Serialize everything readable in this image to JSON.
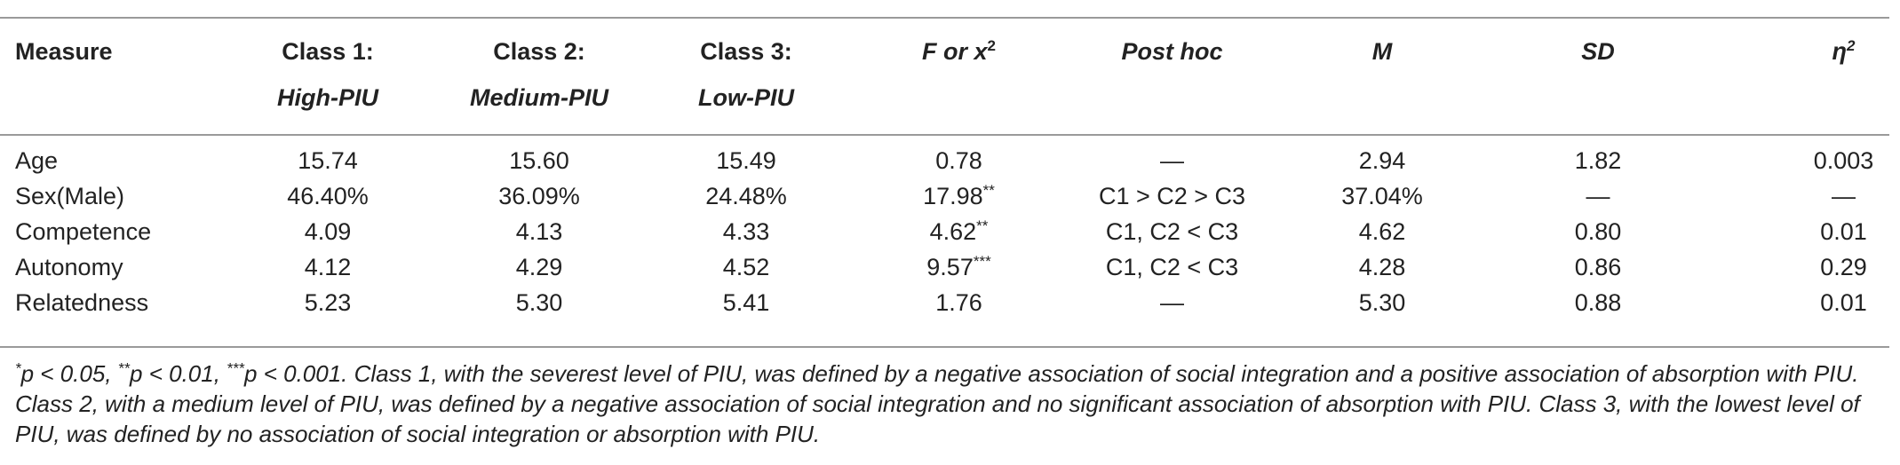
{
  "table": {
    "headers": [
      {
        "line1": "Measure",
        "line2": "",
        "sup": ""
      },
      {
        "line1": "Class 1:",
        "line2": "High-PIU",
        "sup": ""
      },
      {
        "line1": "Class 2:",
        "line2": "Medium-PIU",
        "sup": ""
      },
      {
        "line1": "Class 3:",
        "line2": "Low-PIU",
        "sup": ""
      },
      {
        "line1": "F or x",
        "line2": "",
        "sup": "2"
      },
      {
        "line1": "Post hoc",
        "line2": "",
        "sup": ""
      },
      {
        "line1": "M",
        "line2": "",
        "sup": ""
      },
      {
        "line1": "SD",
        "line2": "",
        "sup": ""
      },
      {
        "line1": "η",
        "line2": "",
        "sup": "2"
      }
    ],
    "rows": [
      {
        "measure": "Age",
        "c1": "15.74",
        "c2": "15.60",
        "c3": "15.49",
        "f": "0.78",
        "f_sup": "",
        "posthoc": "—",
        "m": "2.94",
        "sd": "1.82",
        "eta": "0.003"
      },
      {
        "measure": "Sex(Male)",
        "c1": "46.40%",
        "c2": "36.09%",
        "c3": "24.48%",
        "f": "17.98",
        "f_sup": "**",
        "posthoc": "C1 > C2 > C3",
        "m": "37.04%",
        "sd": "—",
        "eta": "—"
      },
      {
        "measure": "Competence",
        "c1": "4.09",
        "c2": "4.13",
        "c3": "4.33",
        "f": "4.62",
        "f_sup": "**",
        "posthoc": "C1, C2 < C3",
        "m": "4.62",
        "sd": "0.80",
        "eta": "0.01"
      },
      {
        "measure": "Autonomy",
        "c1": "4.12",
        "c2": "4.29",
        "c3": "4.52",
        "f": "9.57",
        "f_sup": "***",
        "posthoc": "C1, C2 < C3",
        "m": "4.28",
        "sd": "0.86",
        "eta": "0.29"
      },
      {
        "measure": "Relatedness",
        "c1": "5.23",
        "c2": "5.30",
        "c3": "5.41",
        "f": "1.76",
        "f_sup": "",
        "posthoc": "—",
        "m": "5.30",
        "sd": "0.88",
        "eta": "0.01"
      }
    ]
  },
  "note": {
    "sup1": "*",
    "t1": "p < 0.05, ",
    "sup2": "**",
    "t2": "p < 0.01, ",
    "sup3": "***",
    "t3": "p < 0.001. Class 1, with the severest level of PIU, was defined by a negative association of social integration and a positive association of absorption with PIU. Class 2, with a medium level of PIU, was defined by a negative association of social integration and no significant association of absorption with PIU. Class 3, with the lowest level of PIU, was defined by no association of social integration or absorption with PIU."
  }
}
